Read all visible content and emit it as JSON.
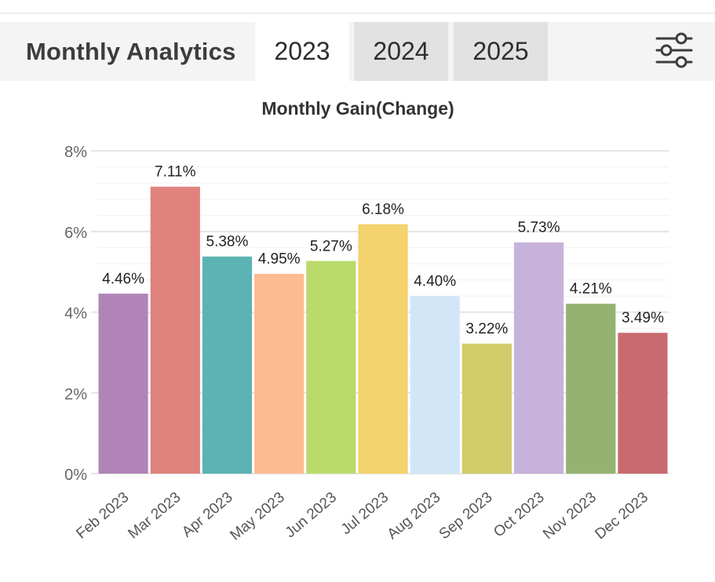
{
  "header": {
    "title": "Monthly Analytics",
    "tabs": [
      {
        "label": "2023",
        "active": true
      },
      {
        "label": "2024",
        "active": false
      },
      {
        "label": "2025",
        "active": false
      }
    ],
    "filter_icon": "sliders-icon"
  },
  "chart_data": {
    "type": "bar",
    "title": "Monthly Gain(Change)",
    "xlabel": "",
    "ylabel": "",
    "ylim": [
      0,
      8
    ],
    "yticks": [
      "0%",
      "2%",
      "4%",
      "6%",
      "8%"
    ],
    "grid": true,
    "categories": [
      "Feb 2023",
      "Mar 2023",
      "Apr 2023",
      "May 2023",
      "Jun 2023",
      "Jul 2023",
      "Aug 2023",
      "Sep 2023",
      "Oct 2023",
      "Nov 2023",
      "Dec 2023"
    ],
    "values": [
      4.46,
      7.11,
      5.38,
      4.95,
      5.27,
      6.18,
      4.4,
      3.22,
      5.73,
      4.21,
      3.49
    ],
    "labels": [
      "4.46%",
      "7.11%",
      "5.38%",
      "4.95%",
      "5.27%",
      "6.18%",
      "4.40%",
      "3.22%",
      "5.73%",
      "4.21%",
      "3.49%"
    ],
    "colors": [
      "#b184b8",
      "#e0827e",
      "#5cb3b3",
      "#fdbb92",
      "#badb6b",
      "#f4d26d",
      "#d3e6f8",
      "#d1cb6a",
      "#c6b2db",
      "#94b371",
      "#c96a6e"
    ]
  }
}
